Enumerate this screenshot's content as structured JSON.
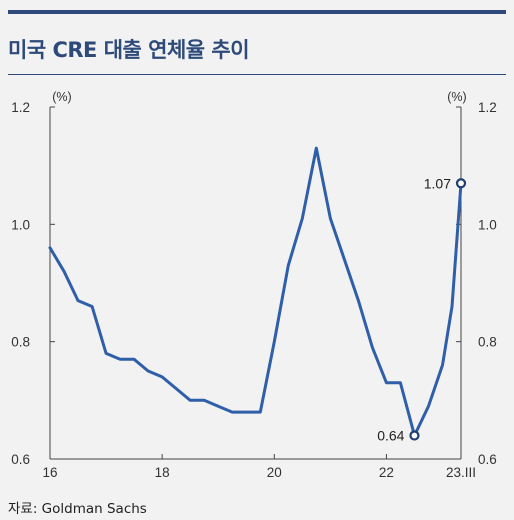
{
  "title": "미국 CRE 대출 연체율 추이",
  "source": "자료: Goldman Sachs",
  "chart_data": {
    "type": "line",
    "unit_left": "(%)",
    "unit_right": "(%)",
    "ylim": [
      0.6,
      1.2
    ],
    "yticks": [
      0.6,
      0.8,
      1.0,
      1.2
    ],
    "ytick_labels": [
      "0.6",
      "0.8",
      "1.0",
      "1.2"
    ],
    "xlim": [
      2016.0,
      2023.33
    ],
    "xticks": [
      2016,
      2018,
      2020,
      2022,
      2023.33
    ],
    "xtick_labels": [
      "16",
      "18",
      "20",
      "22",
      "23.III"
    ],
    "grid": false,
    "line_color": "#2e5fa8",
    "series": [
      {
        "x": [
          2016.0,
          2016.25,
          2016.5,
          2016.75,
          2017.0,
          2017.25,
          2017.5,
          2017.75,
          2018.0,
          2018.25,
          2018.5,
          2018.75,
          2019.0,
          2019.25,
          2019.5,
          2019.75,
          2020.0,
          2020.25,
          2020.5,
          2020.75,
          2021.0,
          2021.25,
          2021.5,
          2021.75,
          2022.0,
          2022.25,
          2022.5,
          2022.75,
          2023.0,
          2023.17,
          2023.33
        ],
        "y": [
          0.96,
          0.92,
          0.87,
          0.86,
          0.78,
          0.77,
          0.77,
          0.75,
          0.74,
          0.72,
          0.7,
          0.7,
          0.69,
          0.68,
          0.68,
          0.68,
          0.8,
          0.93,
          1.01,
          1.13,
          1.01,
          0.94,
          0.87,
          0.79,
          0.73,
          0.73,
          0.64,
          0.69,
          0.76,
          0.86,
          1.07
        ]
      }
    ],
    "annotations": [
      {
        "label": "0.64",
        "x": 2022.5,
        "y": 0.64
      },
      {
        "label": "1.07",
        "x": 2023.33,
        "y": 1.07
      }
    ]
  }
}
